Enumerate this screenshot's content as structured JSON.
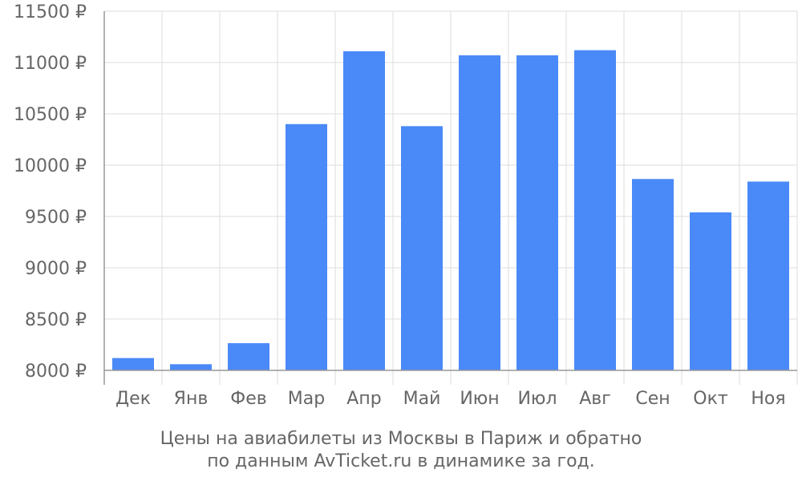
{
  "colors": {
    "bar": "#4a89f8",
    "grid": "#dddddd",
    "axis": "#999999",
    "text": "#666666"
  },
  "caption": {
    "line1": "Цены на авиабилеты из Москвы в Париж и обратно",
    "line2": "по данным AvTicket.ru в динамике за год."
  },
  "chart_data": {
    "type": "bar",
    "categories": [
      "Дек",
      "Янв",
      "Фев",
      "Мар",
      "Апр",
      "Май",
      "Июн",
      "Июл",
      "Авг",
      "Сен",
      "Окт",
      "Ноя"
    ],
    "values": [
      8120,
      8060,
      8265,
      10400,
      11110,
      10380,
      11070,
      11070,
      11120,
      9865,
      9540,
      9840
    ],
    "ylim": [
      8000,
      11500
    ],
    "yticks": [
      8000,
      8500,
      9000,
      9500,
      10000,
      10500,
      11000,
      11500
    ],
    "ytick_labels": [
      "8000 ₽",
      "8500 ₽",
      "9000 ₽",
      "9500 ₽",
      "10000 ₽",
      "10500 ₽",
      "11000 ₽",
      "11500 ₽"
    ],
    "grid": true,
    "title": "",
    "xlabel": "",
    "ylabel": ""
  }
}
